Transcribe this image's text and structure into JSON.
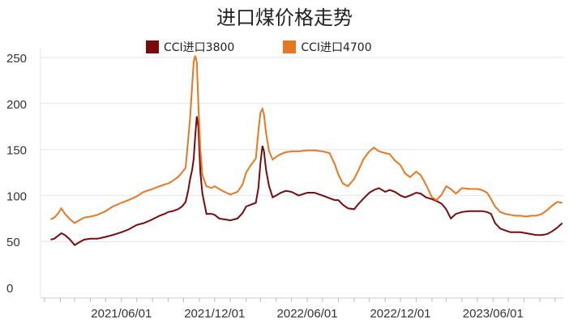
{
  "chart_data": {
    "type": "line",
    "title": "进口煤价格走势",
    "ylim": [
      0,
      260
    ],
    "y_ticks": [
      "0",
      "50",
      "100",
      "150",
      "200",
      "250"
    ],
    "x_tick_labels": [
      "2021/06/01",
      "2021/12/01",
      "2022/06/01",
      "2022/12/01",
      "2023/06/01"
    ],
    "x_tick_dates": [
      "2021-06-01",
      "2021-12-01",
      "2022-06-01",
      "2022-12-01",
      "2023-06-01"
    ],
    "xlim": [
      "2021-01-01",
      "2023-10-25"
    ],
    "grid": true,
    "legend_position": "top",
    "series": [
      {
        "name": "CCI进口3800",
        "color": "#7b0a0a",
        "x": [
          "2021-01-13",
          "2021-01-20",
          "2021-01-27",
          "2021-02-03",
          "2021-02-10",
          "2021-02-20",
          "2021-03-01",
          "2021-03-10",
          "2021-03-20",
          "2021-04-01",
          "2021-04-15",
          "2021-05-01",
          "2021-05-15",
          "2021-06-01",
          "2021-06-15",
          "2021-07-01",
          "2021-07-15",
          "2021-08-01",
          "2021-08-15",
          "2021-08-25",
          "2021-09-01",
          "2021-09-10",
          "2021-09-20",
          "2021-09-28",
          "2021-10-05",
          "2021-10-10",
          "2021-10-14",
          "2021-10-18",
          "2021-10-21",
          "2021-10-24",
          "2021-10-27",
          "2021-10-30",
          "2021-11-03",
          "2021-11-07",
          "2021-11-15",
          "2021-11-25",
          "2021-12-01",
          "2021-12-10",
          "2021-12-20",
          "2022-01-01",
          "2022-01-15",
          "2022-01-25",
          "2022-02-01",
          "2022-02-10",
          "2022-02-20",
          "2022-02-25",
          "2022-03-01",
          "2022-03-05",
          "2022-03-08",
          "2022-03-12",
          "2022-03-18",
          "2022-03-25",
          "2022-04-01",
          "2022-04-10",
          "2022-04-20",
          "2022-05-01",
          "2022-05-15",
          "2022-06-01",
          "2022-06-15",
          "2022-07-01",
          "2022-07-15",
          "2022-07-25",
          "2022-08-01",
          "2022-08-10",
          "2022-08-20",
          "2022-09-01",
          "2022-09-10",
          "2022-09-20",
          "2022-10-01",
          "2022-10-10",
          "2022-10-20",
          "2022-11-01",
          "2022-11-10",
          "2022-11-20",
          "2022-12-01",
          "2022-12-10",
          "2022-12-20",
          "2023-01-01",
          "2023-01-10",
          "2023-01-20",
          "2023-02-01",
          "2023-02-10",
          "2023-02-20",
          "2023-03-01",
          "2023-03-10",
          "2023-03-20",
          "2023-04-01",
          "2023-04-15",
          "2023-05-01",
          "2023-05-10",
          "2023-05-20",
          "2023-05-28",
          "2023-06-05",
          "2023-06-15",
          "2023-06-25",
          "2023-07-05",
          "2023-07-15",
          "2023-07-25",
          "2023-08-05",
          "2023-08-15",
          "2023-08-25",
          "2023-09-05",
          "2023-09-15",
          "2023-09-25",
          "2023-10-05",
          "2023-10-15"
        ],
        "values": [
          52,
          53,
          56,
          59,
          57,
          52,
          46,
          49,
          52,
          53,
          53,
          55,
          57,
          60,
          63,
          68,
          70,
          74,
          78,
          80,
          82,
          83,
          85,
          88,
          93,
          105,
          118,
          128,
          140,
          165,
          186,
          175,
          125,
          102,
          80,
          80,
          79,
          75,
          74,
          73,
          75,
          81,
          88,
          90,
          92,
          108,
          135,
          154,
          148,
          128,
          110,
          98,
          100,
          103,
          105,
          104,
          100,
          103,
          103,
          100,
          97,
          95,
          95,
          90,
          86,
          85,
          91,
          97,
          103,
          106,
          108,
          104,
          106,
          104,
          100,
          98,
          100,
          103,
          102,
          98,
          96,
          94,
          91,
          85,
          75,
          80,
          82,
          83,
          83,
          83,
          82,
          80,
          70,
          64,
          62,
          60,
          60,
          60,
          59,
          58,
          57,
          57,
          58,
          61,
          65,
          70
        ]
      },
      {
        "name": "CCI进口4700",
        "color": "#e87722",
        "x": [
          "2021-01-13",
          "2021-01-20",
          "2021-01-27",
          "2021-02-03",
          "2021-02-10",
          "2021-02-20",
          "2021-03-01",
          "2021-03-10",
          "2021-03-20",
          "2021-04-01",
          "2021-04-15",
          "2021-05-01",
          "2021-05-15",
          "2021-06-01",
          "2021-06-15",
          "2021-07-01",
          "2021-07-15",
          "2021-08-01",
          "2021-08-15",
          "2021-08-25",
          "2021-09-01",
          "2021-09-10",
          "2021-09-20",
          "2021-09-28",
          "2021-10-05",
          "2021-10-10",
          "2021-10-14",
          "2021-10-18",
          "2021-10-21",
          "2021-10-24",
          "2021-10-27",
          "2021-10-30",
          "2021-11-03",
          "2021-11-07",
          "2021-11-15",
          "2021-11-25",
          "2021-12-01",
          "2021-12-10",
          "2021-12-20",
          "2022-01-01",
          "2022-01-15",
          "2022-01-25",
          "2022-02-01",
          "2022-02-10",
          "2022-02-20",
          "2022-02-25",
          "2022-03-01",
          "2022-03-05",
          "2022-03-08",
          "2022-03-12",
          "2022-03-18",
          "2022-03-25",
          "2022-04-01",
          "2022-04-10",
          "2022-04-20",
          "2022-05-01",
          "2022-05-15",
          "2022-06-01",
          "2022-06-15",
          "2022-07-01",
          "2022-07-15",
          "2022-07-25",
          "2022-08-01",
          "2022-08-10",
          "2022-08-20",
          "2022-09-01",
          "2022-09-10",
          "2022-09-20",
          "2022-10-01",
          "2022-10-10",
          "2022-10-20",
          "2022-11-01",
          "2022-11-10",
          "2022-11-20",
          "2022-12-01",
          "2022-12-10",
          "2022-12-20",
          "2023-01-01",
          "2023-01-10",
          "2023-01-20",
          "2023-02-01",
          "2023-02-10",
          "2023-02-20",
          "2023-03-01",
          "2023-03-10",
          "2023-03-20",
          "2023-04-01",
          "2023-04-15",
          "2023-05-01",
          "2023-05-10",
          "2023-05-20",
          "2023-05-28",
          "2023-06-05",
          "2023-06-15",
          "2023-06-25",
          "2023-07-05",
          "2023-07-15",
          "2023-07-25",
          "2023-08-05",
          "2023-08-15",
          "2023-08-25",
          "2023-09-05",
          "2023-09-15",
          "2023-09-25",
          "2023-10-05",
          "2023-10-15"
        ],
        "values": [
          74,
          76,
          80,
          86,
          80,
          74,
          70,
          73,
          76,
          77,
          79,
          83,
          88,
          92,
          95,
          99,
          104,
          107,
          110,
          112,
          113,
          116,
          120,
          125,
          130,
          160,
          185,
          220,
          245,
          252,
          245,
          200,
          150,
          122,
          110,
          108,
          110,
          107,
          104,
          101,
          104,
          112,
          125,
          133,
          140,
          170,
          190,
          194,
          188,
          168,
          148,
          139,
          142,
          145,
          147,
          148,
          148,
          149,
          149,
          148,
          146,
          134,
          123,
          113,
          110,
          118,
          128,
          140,
          148,
          152,
          148,
          146,
          145,
          138,
          133,
          124,
          120,
          126,
          122,
          112,
          98,
          95,
          101,
          110,
          107,
          102,
          108,
          107,
          107,
          106,
          103,
          96,
          88,
          82,
          80,
          79,
          78,
          78,
          77,
          78,
          78,
          80,
          84,
          89,
          93,
          92
        ]
      }
    ]
  }
}
